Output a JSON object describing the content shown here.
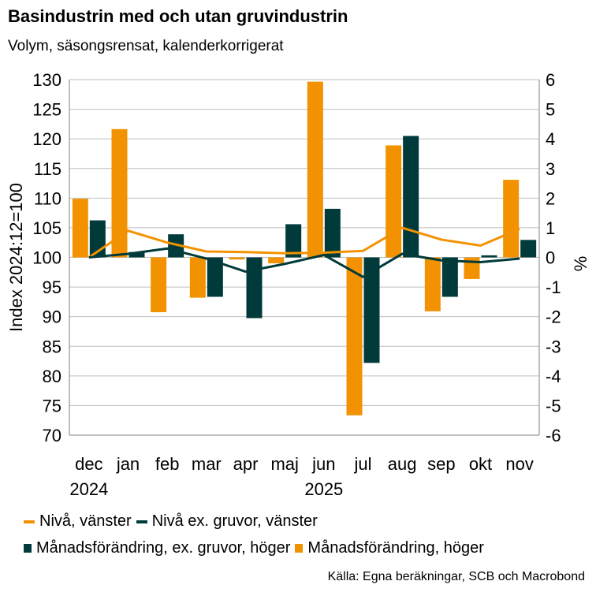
{
  "header": {
    "title": "Basindustrin med och utan gruvindustrin",
    "subtitle": "Volym, säsongsrensat, kalenderkorrigerat"
  },
  "colors": {
    "orange": "#F39200",
    "dark": "#003A3A",
    "grid": "#BFBFBF",
    "axis": "#808080"
  },
  "chart_data": {
    "type": "bar",
    "categories": [
      "dec",
      "jan",
      "feb",
      "mar",
      "apr",
      "maj",
      "jun",
      "jul",
      "aug",
      "sep",
      "okt",
      "nov"
    ],
    "year_labels": [
      {
        "label": "2024",
        "category_index": 0
      },
      {
        "label": "2025",
        "category_index": 6
      }
    ],
    "ylabel": "Index 2024:12=100",
    "y2label": "%",
    "ylim": [
      70,
      130
    ],
    "y2lim": [
      -6,
      6
    ],
    "yticks": [
      70,
      75,
      80,
      85,
      90,
      95,
      100,
      105,
      110,
      115,
      120,
      125,
      130
    ],
    "y2ticks": [
      -6,
      -5,
      -4,
      -3,
      -2,
      -1,
      0,
      1,
      2,
      3,
      4,
      5,
      6
    ],
    "series": [
      {
        "name": "Nivå, vänster",
        "kind": "line",
        "axis": "left",
        "color": "#F39200",
        "values": [
          100,
          104.5,
          102.5,
          101.0,
          100.9,
          100.7,
          100.8,
          101.1,
          105.0,
          103.0,
          102.0,
          104.8
        ]
      },
      {
        "name": "Nivå ex. gruvor, vänster",
        "kind": "line",
        "axis": "left",
        "color": "#003A3A",
        "values": [
          100,
          100.6,
          101.5,
          99.8,
          97.6,
          98.9,
          100.4,
          96.7,
          100.6,
          99.5,
          99.2,
          99.8
        ]
      },
      {
        "name": "Månadsförändring, ex. gruvor, höger",
        "kind": "bar",
        "axis": "right",
        "color": "#003A3A",
        "values": [
          1.25,
          0.18,
          0.78,
          -1.33,
          -2.05,
          1.12,
          1.64,
          -3.56,
          4.1,
          -1.33,
          0.07,
          0.59
        ]
      },
      {
        "name": "Månadsförändring, höger",
        "kind": "bar",
        "axis": "right",
        "color": "#F39200",
        "values": [
          1.98,
          4.33,
          -1.85,
          -1.36,
          -0.07,
          -0.2,
          5.93,
          -5.33,
          3.78,
          -1.82,
          -0.73,
          2.62
        ]
      }
    ]
  },
  "legend": {
    "items": [
      {
        "label": "Nivå, vänster",
        "style": "line",
        "color": "#F39200"
      },
      {
        "label": "Nivå ex. gruvor, vänster",
        "style": "line",
        "color": "#003A3A"
      },
      {
        "label": "Månadsförändring, ex. gruvor, höger",
        "style": "box",
        "color": "#003A3A"
      },
      {
        "label": "Månadsförändring, höger",
        "style": "box",
        "color": "#F39200"
      }
    ]
  },
  "source": "Källa: Egna beräkningar, SCB och Macrobond"
}
